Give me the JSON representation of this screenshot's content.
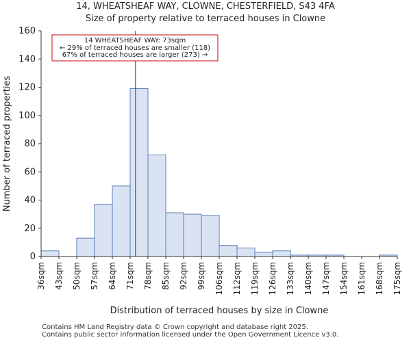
{
  "chart_data": {
    "type": "bar",
    "title": "14, WHEATSHEAF WAY, CLOWNE, CHESTERFIELD, S43 4FA",
    "subtitle": "Size of property relative to terraced houses in Clowne",
    "xlabel": "Distribution of terraced houses by size in Clowne",
    "ylabel": "Number of terraced properties",
    "ylim": [
      0,
      160
    ],
    "yticks": [
      0,
      20,
      40,
      60,
      80,
      100,
      120,
      140,
      160
    ],
    "tick_labels": [
      "36sqm",
      "43sqm",
      "50sqm",
      "57sqm",
      "64sqm",
      "71sqm",
      "78sqm",
      "85sqm",
      "92sqm",
      "99sqm",
      "106sqm",
      "112sqm",
      "119sqm",
      "126sqm",
      "133sqm",
      "140sqm",
      "147sqm",
      "154sqm",
      "161sqm",
      "168sqm",
      "175sqm"
    ],
    "values": [
      4,
      0,
      13,
      37,
      50,
      119,
      72,
      31,
      30,
      29,
      8,
      6,
      3,
      4,
      1,
      1,
      1,
      0,
      0,
      1
    ],
    "marker_bin_position": 5.3,
    "annotation": {
      "line1": "14 WHEATSHEAF WAY: 73sqm",
      "line2": "← 29% of terraced houses are smaller (118)",
      "line3": "67% of terraced houses are larger (273) →"
    },
    "colors": {
      "bar_fill": "#dae3f3",
      "bar_edge": "#5a7fb5",
      "marker": "#cc0000"
    }
  },
  "footer": {
    "line1": "Contains HM Land Registry data © Crown copyright and database right 2025.",
    "line2": "Contains public sector information licensed under the Open Government Licence v3.0."
  }
}
